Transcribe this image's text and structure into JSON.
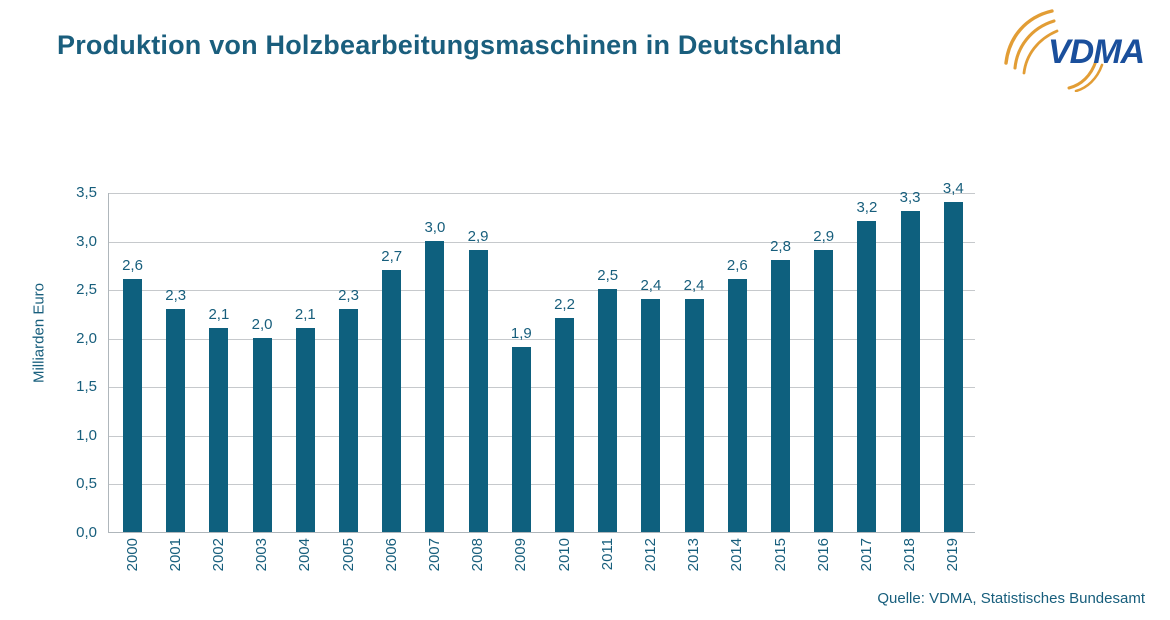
{
  "title": "Produktion von Holzbearbeitungsmaschinen in Deutschland",
  "source": "Quelle: VDMA, Statistisches Bundesamt",
  "logo": {
    "text": "VDMA"
  },
  "colors": {
    "bar": "#0E607E",
    "chart_text": "#175E7C",
    "title_text": "#1A5E7D",
    "grid": "#C6C9CC",
    "axis": "#AFB6BB",
    "logo_orange": "#E29D35",
    "logo_blue": "#1A4F9C"
  },
  "chart_data": {
    "type": "bar",
    "title": "Produktion von Holzbearbeitungsmaschinen in Deutschland",
    "categories": [
      "2000",
      "2001",
      "2002",
      "2003",
      "2004",
      "2005",
      "2006",
      "2007",
      "2008",
      "2009",
      "2010",
      "2011",
      "2012",
      "2013",
      "2014",
      "2015",
      "2016",
      "2017",
      "2018",
      "2019"
    ],
    "values": [
      2.6,
      2.3,
      2.1,
      2.0,
      2.1,
      2.3,
      2.7,
      3.0,
      2.9,
      1.9,
      2.2,
      2.5,
      2.4,
      2.4,
      2.6,
      2.8,
      2.9,
      3.2,
      3.3,
      3.4
    ],
    "value_labels": [
      "2,6",
      "2,3",
      "2,1",
      "2,0",
      "2,1",
      "2,3",
      "2,7",
      "3,0",
      "2,9",
      "1,9",
      "2,2",
      "2,5",
      "2,4",
      "2,4",
      "2,6",
      "2,8",
      "2,9",
      "3,2",
      "3,3",
      "3,4"
    ],
    "xlabel": "",
    "ylabel": "Milliarden Euro",
    "ylim": [
      0,
      3.5
    ],
    "ytick_step": 0.5,
    "ytick_labels": [
      "0,0",
      "0,5",
      "1,0",
      "1,5",
      "2,0",
      "2,5",
      "3,0",
      "3,5"
    ],
    "grid": true,
    "legend": false,
    "bar_color": "#0E607E",
    "source": "Quelle: VDMA, Statistisches Bundesamt"
  }
}
